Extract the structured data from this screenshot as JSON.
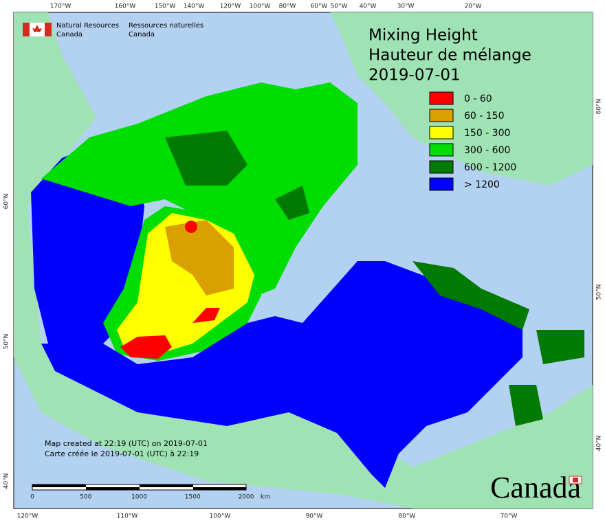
{
  "agency": {
    "en_line1": "Natural Resources",
    "en_line2": "Canada",
    "fr_line1": "Ressources naturelles",
    "fr_line2": "Canada"
  },
  "title": {
    "line1": "Mixing Height",
    "line2": "Hauteur de mélange",
    "date": "2019-07-01"
  },
  "legend": [
    {
      "label": "0 - 60",
      "color": "#ff0000"
    },
    {
      "label": "60 - 150",
      "color": "#d9a000"
    },
    {
      "label": "150 - 300",
      "color": "#ffff00"
    },
    {
      "label": "300 - 600",
      "color": "#00dd00"
    },
    {
      "label": "600 - 1200",
      "color": "#007a00"
    },
    {
      "label": "> 1200",
      "color": "#0000ff"
    }
  ],
  "top_labels": [
    "170°W",
    "160°W",
    "150°W",
    "140°W",
    "120°W",
    "100°W",
    "80°W",
    "60°W",
    "50°W",
    "40°W",
    "30°W",
    "20°W"
  ],
  "bottom_labels": [
    "120°W",
    "110°W",
    "100°W",
    "90°W",
    "80°W",
    "70°W"
  ],
  "left_labels": [
    "60°N",
    "50°N",
    "40°N"
  ],
  "right_labels": [
    "60°N",
    "50°N",
    "40°N"
  ],
  "footer": {
    "created_en": "Map created at 22:19 (UTC) on 2019-07-01",
    "created_fr": "Carte créée le 2019-07-01 (UTC) à 22:19"
  },
  "scale": {
    "labels": [
      "0",
      "500",
      "1000",
      "1500",
      "2000"
    ],
    "unit": "km"
  },
  "wordmark": "Canada"
}
